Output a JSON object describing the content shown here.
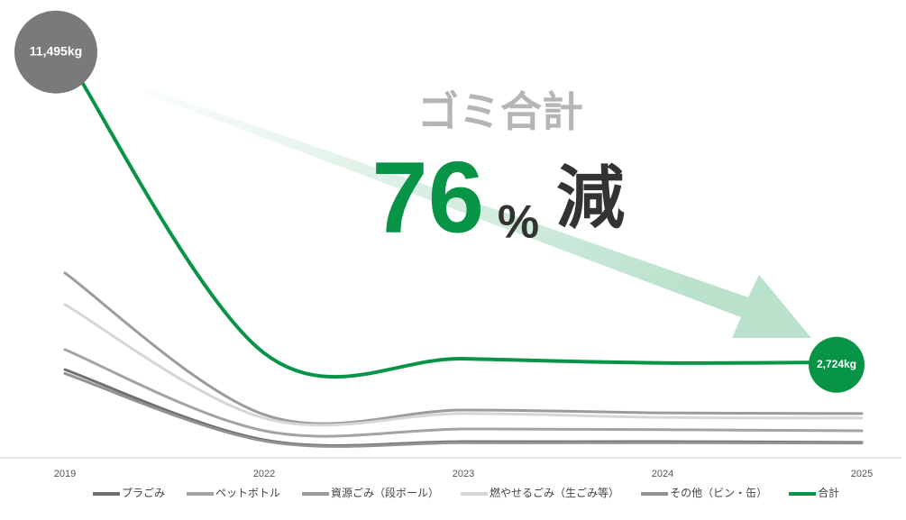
{
  "chart_data": {
    "type": "line",
    "headline": "ゴミ合計",
    "reduction": "76",
    "reduction_unit": "%",
    "reduction_suffix": "減",
    "categories": [
      "2019",
      "2022",
      "2023",
      "2024",
      "2025"
    ],
    "ylim": [
      0,
      13000
    ],
    "series": [
      {
        "name": "プラごみ",
        "color": "#6f6f6f",
        "values": [
          2510,
          510,
          460,
          460,
          440
        ]
      },
      {
        "name": "ペットボトル",
        "color": "#a3a3a3",
        "values": [
          3080,
          770,
          820,
          800,
          770
        ]
      },
      {
        "name": "資源ごみ（段ボール）",
        "color": "#9c9c9c",
        "values": [
          5260,
          1230,
          1360,
          1280,
          1260
        ]
      },
      {
        "name": "燃やせるごみ（生ごみ等）",
        "color": "#d6d6d6",
        "values": [
          4360,
          1130,
          1260,
          1150,
          1130
        ]
      },
      {
        "name": "その他（ビン・缶）",
        "color": "#929292",
        "values": [
          2400,
          480,
          430,
          430,
          420
        ]
      },
      {
        "name": "合計",
        "color": "#079447",
        "values": [
          11495,
          2980,
          2820,
          2700,
          2724
        ],
        "value_labels": [
          "11,495kg",
          null,
          null,
          null,
          "2,724kg"
        ]
      }
    ]
  }
}
